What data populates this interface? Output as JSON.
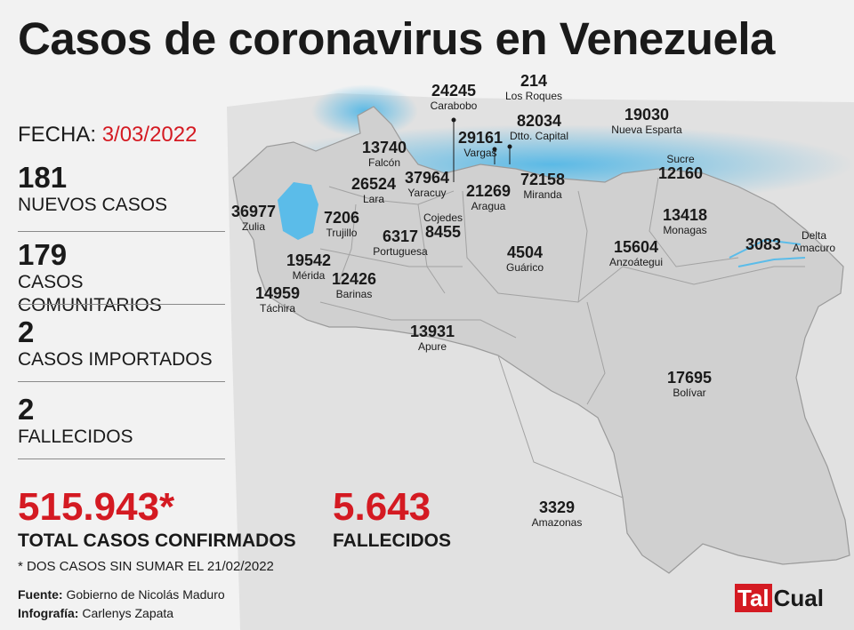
{
  "title": "Casos de coronavirus en Venezuela",
  "date": {
    "label": "FECHA: ",
    "value": "3/03/2022"
  },
  "stats": [
    {
      "value": "181",
      "label": "NUEVOS CASOS"
    },
    {
      "value": "179",
      "label": "CASOS COMUNITARIOS"
    },
    {
      "value": "2",
      "label": "CASOS IMPORTADOS"
    },
    {
      "value": "2",
      "label": "FALLECIDOS"
    }
  ],
  "totals": {
    "cases": {
      "value": "515.943*",
      "label": "TOTAL CASOS CONFIRMADOS"
    },
    "deaths": {
      "value": "5.643",
      "label": "FALLECIDOS"
    }
  },
  "footnote": "* DOS CASOS SIN SUMAR EL 21/02/2022",
  "credits": {
    "source_key": "Fuente:",
    "source_value": "Gobierno de Nicolás Maduro",
    "graphic_key": "Infografía:",
    "graphic_value": "Carlenys Zapata"
  },
  "logo": {
    "part1": "Tal",
    "part2": "Cual"
  },
  "colors": {
    "accent": "#d41a22",
    "sea": "#4cb5e6",
    "land": "#d0d0d0",
    "background": "#f2f2f2"
  },
  "states": [
    {
      "name": "Carabobo",
      "cases": "24245"
    },
    {
      "name": "Los Roques",
      "cases": "214"
    },
    {
      "name": "Dtto. Capital",
      "cases": "82034"
    },
    {
      "name": "Vargas",
      "cases": "29161"
    },
    {
      "name": "Nueva Esparta",
      "cases": "19030"
    },
    {
      "name": "Falcón",
      "cases": "13740"
    },
    {
      "name": "Sucre",
      "cases": "12160"
    },
    {
      "name": "Lara",
      "cases": "26524"
    },
    {
      "name": "Yaracuy",
      "cases": "37964"
    },
    {
      "name": "Aragua",
      "cases": "21269"
    },
    {
      "name": "Miranda",
      "cases": "72158"
    },
    {
      "name": "Zulia",
      "cases": "36977"
    },
    {
      "name": "Trujillo",
      "cases": "7206"
    },
    {
      "name": "Cojedes",
      "cases": "8455"
    },
    {
      "name": "Monagas",
      "cases": "13418"
    },
    {
      "name": "Portuguesa",
      "cases": "6317"
    },
    {
      "name_line1": "Delta",
      "name_line2": "Amacuro",
      "cases": "3083"
    },
    {
      "name": "Guárico",
      "cases": "4504"
    },
    {
      "name": "Anzoátegui",
      "cases": "15604"
    },
    {
      "name": "Mérida",
      "cases": "19542"
    },
    {
      "name": "Barinas",
      "cases": "12426"
    },
    {
      "name": "Táchira",
      "cases": "14959"
    },
    {
      "name": "Apure",
      "cases": "13931"
    },
    {
      "name": "Bolívar",
      "cases": "17695"
    },
    {
      "name": "Amazonas",
      "cases": "3329"
    }
  ]
}
